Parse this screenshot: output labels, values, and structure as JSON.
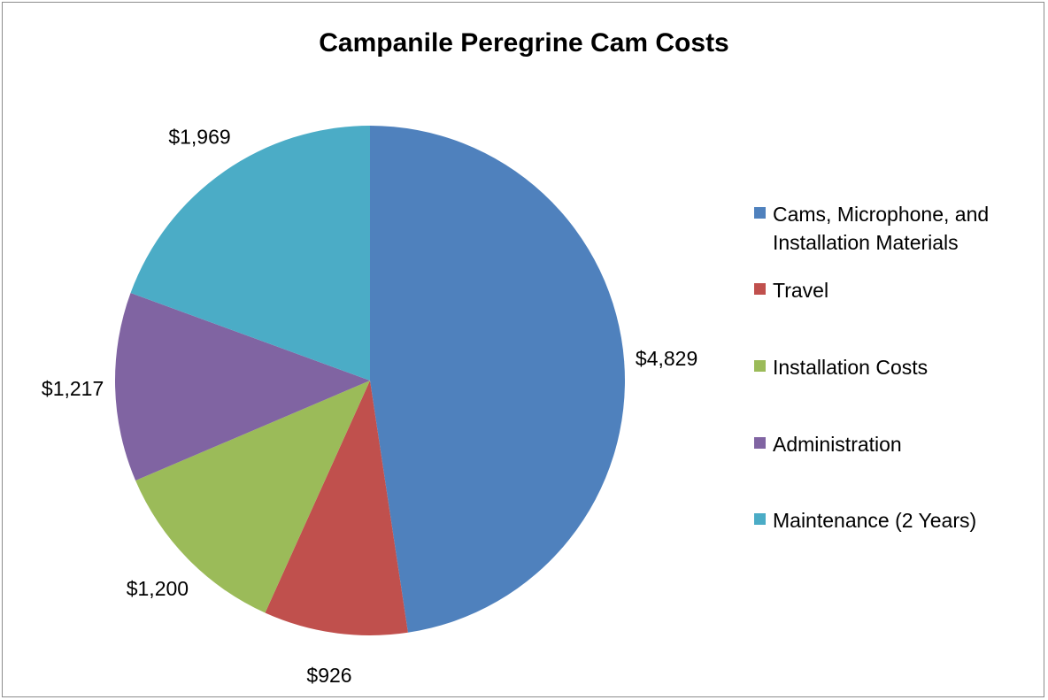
{
  "chart_data": {
    "type": "pie",
    "title": "Campanile Peregrine Cam Costs",
    "categories": [
      "Cams, Microphone, and Installation Materials",
      "Travel",
      "Installation Costs",
      "Administration",
      "Maintenance (2 Years)"
    ],
    "values": [
      4829,
      926,
      1200,
      1217,
      1969
    ],
    "data_labels": [
      "$4,829",
      "$926",
      "$1,200",
      "$1,217",
      "$1,969"
    ],
    "colors": [
      "#4F81BD",
      "#C0504D",
      "#9BBB59",
      "#8064A2",
      "#4BACC6"
    ],
    "legend": {
      "position": "right",
      "lines": [
        [
          "Cams, Microphone, and",
          "Installation Materials"
        ],
        [
          "Travel"
        ],
        [
          "Installation Costs"
        ],
        [
          "Administration"
        ],
        [
          "Maintenance (2 Years)"
        ]
      ]
    },
    "start_angle_deg": 0,
    "direction": "clockwise"
  }
}
